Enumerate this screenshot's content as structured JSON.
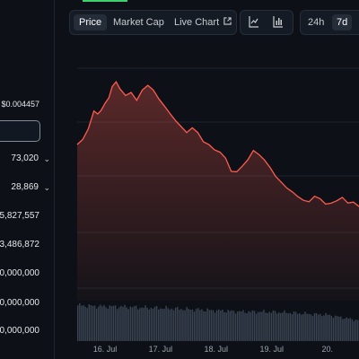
{
  "sidebar": {
    "price_low": "$0.004457",
    "rows": [
      {
        "text": "73,020",
        "chevron": true
      },
      {
        "text": "28,869",
        "chevron": true
      },
      {
        "text": "5,827,557",
        "chevron": false
      },
      {
        "text": "3,486,872",
        "chevron": false
      },
      {
        "text": "0,000,000",
        "chevron": false
      },
      {
        "text": "0,000,000",
        "chevron": false
      },
      {
        "text": "0,000,000",
        "chevron": false
      }
    ]
  },
  "tabs": {
    "price": "Price",
    "market_cap": "Market Cap",
    "live_chart": "Live Chart",
    "live_chart_icon": "external-link-icon"
  },
  "chart_type": {
    "line_icon": "line-chart-icon",
    "bar_icon": "candlestick-chart-icon"
  },
  "ranges": {
    "r24h": "24h",
    "r7d": "7d"
  },
  "colors": {
    "accent_green": "#3ed06d",
    "line_red": "#ff5a4e",
    "volume": "#3a4452"
  },
  "chart_data": {
    "type": "area",
    "x_ticks": [
      "16. Jul",
      "17. Jul",
      "18. Jul",
      "19. Jul",
      "20."
    ],
    "x_tick_pos": [
      0.5,
      1.5,
      2.5,
      3.5,
      4.5
    ],
    "price_series": [
      [
        0.0,
        0.5705
      ],
      [
        0.1,
        0.6035
      ],
      [
        0.2,
        0.6734
      ],
      [
        0.3,
        0.7899
      ],
      [
        0.37,
        0.7705
      ],
      [
        0.43,
        0.7938
      ],
      [
        0.5,
        0.8406
      ],
      [
        0.57,
        0.8765
      ],
      [
        0.63,
        0.9504
      ],
      [
        0.7,
        0.9815
      ],
      [
        0.77,
        0.9348
      ],
      [
        0.87,
        0.892
      ],
      [
        0.97,
        0.912
      ],
      [
        1.07,
        0.86
      ],
      [
        1.17,
        0.927
      ],
      [
        1.27,
        0.9585
      ],
      [
        1.37,
        0.9275
      ],
      [
        1.47,
        0.8695
      ],
      [
        1.57,
        0.8226
      ],
      [
        1.67,
        0.7734
      ],
      [
        1.77,
        0.727
      ],
      [
        1.87,
        0.688
      ],
      [
        1.97,
        0.649
      ],
      [
        2.07,
        0.68
      ],
      [
        2.17,
        0.649
      ],
      [
        2.27,
        0.588
      ],
      [
        2.37,
        0.57
      ],
      [
        2.47,
        0.535
      ],
      [
        2.57,
        0.52
      ],
      [
        2.67,
        0.4807
      ],
      [
        2.77,
        0.3945
      ],
      [
        2.87,
        0.392
      ],
      [
        2.97,
        0.428
      ],
      [
        3.07,
        0.47
      ],
      [
        3.17,
        0.531
      ],
      [
        3.27,
        0.505
      ],
      [
        3.37,
        0.469
      ],
      [
        3.47,
        0.42
      ],
      [
        3.57,
        0.362
      ],
      [
        3.67,
        0.324
      ],
      [
        3.77,
        0.286
      ],
      [
        3.87,
        0.26
      ],
      [
        3.97,
        0.229
      ],
      [
        4.07,
        0.205
      ],
      [
        4.17,
        0.195
      ],
      [
        4.27,
        0.231
      ],
      [
        4.37,
        0.215
      ],
      [
        4.47,
        0.18
      ],
      [
        4.57,
        0.186
      ],
      [
        4.67,
        0.202
      ],
      [
        4.77,
        0.224
      ],
      [
        4.87,
        0.187
      ],
      [
        4.97,
        0.193
      ],
      [
        5.07,
        0.164
      ]
    ],
    "volume_series": [
      [
        0.0,
        0.95
      ],
      [
        0.3,
        0.93
      ],
      [
        0.6,
        0.92
      ],
      [
        0.9,
        0.91
      ],
      [
        1.2,
        0.89
      ],
      [
        1.5,
        0.88
      ],
      [
        1.8,
        0.86
      ],
      [
        2.1,
        0.84
      ],
      [
        2.4,
        0.82
      ],
      [
        2.7,
        0.8
      ],
      [
        3.0,
        0.78
      ],
      [
        3.3,
        0.78
      ],
      [
        3.6,
        0.77
      ],
      [
        3.9,
        0.75
      ],
      [
        4.2,
        0.72
      ],
      [
        4.5,
        0.7
      ],
      [
        4.8,
        0.62
      ],
      [
        5.07,
        0.55
      ]
    ],
    "x_range": [
      0,
      5.07
    ],
    "y_range": [
      0,
      1
    ],
    "grid": true
  }
}
